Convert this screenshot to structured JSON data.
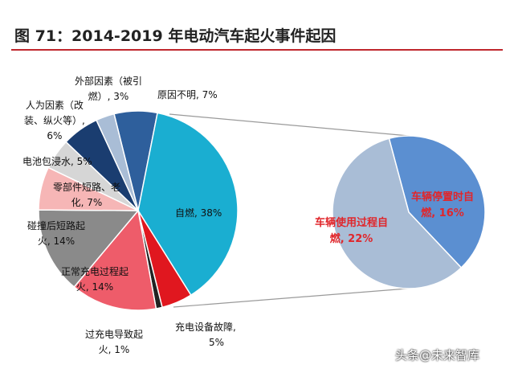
{
  "title": "图 71：2014-2019 年电动汽车起火事件起因",
  "watermark": "头条@未来智库",
  "chart_data": [
    {
      "type": "pie",
      "slices": [
        {
          "name": "原因不明",
          "value": 7,
          "color": "#2e5f9c",
          "label_lines": [
            "原因不明, 7%"
          ]
        },
        {
          "name": "自燃",
          "value": 38,
          "color": "#1aaed1",
          "label_lines": [
            "自燃, 38%"
          ]
        },
        {
          "name": "充电设备故障",
          "value": 5,
          "color": "#e0171f",
          "label_lines": [
            "充电设备故障,",
            "5%"
          ]
        },
        {
          "name": "过充电导致起火",
          "value": 1,
          "color": "#222222",
          "label_lines": [
            "过充电导致起",
            "火, 1%"
          ]
        },
        {
          "name": "正常充电过程起火",
          "value": 14,
          "color": "#ee5c6a",
          "label_lines": [
            "正常充电过程起",
            "火, 14%"
          ]
        },
        {
          "name": "碰撞后短路起火",
          "value": 14,
          "color": "#8a8a8a",
          "label_lines": [
            "碰撞后短路起",
            "火, 14%"
          ]
        },
        {
          "name": "零部件短路、老化",
          "value": 7,
          "color": "#f6b6b6",
          "label_lines": [
            "零部件短路、老",
            "化, 7%"
          ]
        },
        {
          "name": "电池包浸水",
          "value": 5,
          "color": "#d6d6d6",
          "label_lines": [
            "电池包浸水, 5%"
          ]
        },
        {
          "name": "人为因素（改装、纵火等）",
          "value": 6,
          "color": "#1a3d70",
          "label_lines": [
            "人为因素（改",
            "装、纵火等）,",
            "6%"
          ]
        },
        {
          "name": "外部因素（被引燃）",
          "value": 3,
          "color": "#a9bdd6",
          "label_lines": [
            "外部因素（被引",
            "燃）, 3%"
          ]
        }
      ]
    },
    {
      "type": "pie",
      "slices": [
        {
          "name": "车辆停置时自燃",
          "value": 16,
          "color": "#5b8fd1",
          "label_lines": [
            "车辆停置时自",
            "燃, 16%"
          ]
        },
        {
          "name": "车辆使用过程自燃",
          "value": 22,
          "color": "#a9bdd6",
          "label_lines": [
            "车辆使用过程自",
            "燃, 22%"
          ]
        }
      ]
    }
  ]
}
